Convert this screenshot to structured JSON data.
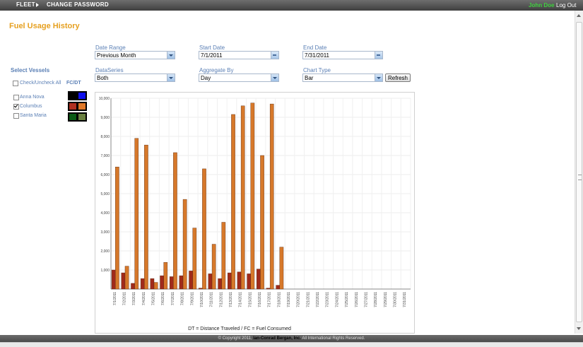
{
  "nav": {
    "fleet": "Fleet",
    "change_password": "Change Password",
    "user": "John Doe",
    "logout": "Log Out"
  },
  "page_title": "Fuel Usage History",
  "filters": {
    "date_range": {
      "label": "Date Range",
      "value": "Previous Month"
    },
    "start_date": {
      "label": "Start Date",
      "value": "7/1/2011"
    },
    "end_date": {
      "label": "End Date",
      "value": "7/31/2011"
    },
    "data_series": {
      "label": "DataSeries",
      "value": "Both"
    },
    "aggregate_by": {
      "label": "Aggregate By",
      "value": "Day"
    },
    "chart_type": {
      "label": "Chart Type",
      "value": "Bar"
    },
    "refresh_label": "Refresh"
  },
  "vessels": {
    "heading": "Select Vessels",
    "check_all_label": "Check/Uncheck All",
    "fc_dt_label": "FC/DT",
    "items": [
      {
        "name": "Anna Nova",
        "checked": false,
        "colors": [
          "#000000",
          "#1010ee"
        ]
      },
      {
        "name": "Columbus",
        "checked": true,
        "colors": [
          "#b03020",
          "#e07828"
        ]
      },
      {
        "name": "Santa Maria",
        "checked": false,
        "colors": [
          "#0a5a14",
          "#6a8040"
        ]
      }
    ]
  },
  "chart_data": {
    "type": "bar",
    "caption": "DT = Distance Traveled / FC = Fuel Consumed",
    "ylim": [
      0,
      10000
    ],
    "yticks": [
      "1,000",
      "2,000",
      "3,000",
      "4,000",
      "5,000",
      "6,000",
      "7,000",
      "8,000",
      "9,000",
      "10,000"
    ],
    "categories": [
      "7/1/2011",
      "7/2/2011",
      "7/3/2011",
      "7/4/2011",
      "7/5/2011",
      "7/6/2011",
      "7/7/2011",
      "7/8/2011",
      "7/9/2011",
      "7/10/2011",
      "7/11/2011",
      "7/12/2011",
      "7/13/2011",
      "7/14/2011",
      "7/15/2011",
      "7/16/2011",
      "7/17/2011",
      "7/18/2011",
      "7/19/2011",
      "7/20/2011",
      "7/21/2011",
      "7/22/2011",
      "7/23/2011",
      "7/24/2011",
      "7/25/2011",
      "7/26/2011",
      "7/27/2011",
      "7/28/2011",
      "7/29/2011",
      "7/30/2011",
      "7/31/2011"
    ],
    "series": [
      {
        "values": [
          1000,
          850,
          300,
          550,
          550,
          700,
          650,
          700,
          950,
          50,
          800,
          550,
          850,
          900,
          800,
          1050,
          50,
          200,
          0,
          0,
          0,
          0,
          0,
          0,
          0,
          0,
          0,
          0,
          0,
          0,
          0
        ],
        "color": "#a02a1a"
      },
      {
        "values": [
          6400,
          1200,
          7900,
          7550,
          350,
          1400,
          7150,
          4700,
          3200,
          6300,
          2350,
          3500,
          9150,
          9600,
          9750,
          7000,
          9700,
          2200,
          0,
          0,
          0,
          0,
          0,
          0,
          0,
          0,
          0,
          0,
          0,
          0,
          0
        ],
        "color": "#d6782a"
      }
    ],
    "grid": true
  },
  "footer": {
    "prefix": "© Copyright 2011, ",
    "company": "Ian-Conrad Bergan, Inc.",
    "suffix": " All International Rights Reserved."
  }
}
